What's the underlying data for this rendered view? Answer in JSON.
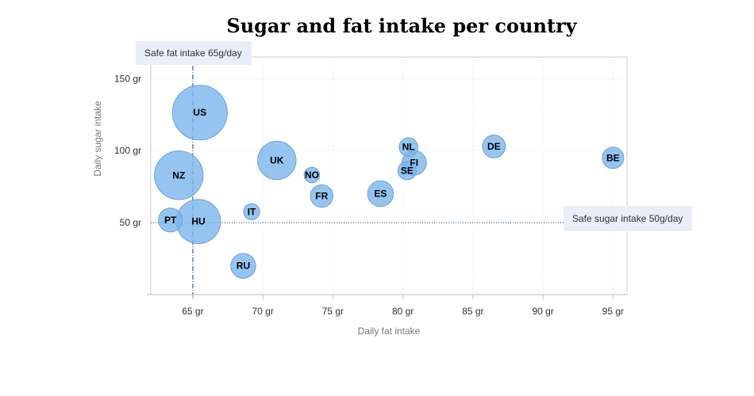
{
  "chart_data": {
    "type": "scatter",
    "title": "Sugar and fat intake per country",
    "xlabel": "Daily fat intake",
    "ylabel": "Daily sugar intake",
    "xlim": [
      62,
      96
    ],
    "ylim": [
      0,
      165
    ],
    "x_ticks": [
      {
        "value": 65,
        "label": "65 gr"
      },
      {
        "value": 70,
        "label": "70 gr"
      },
      {
        "value": 75,
        "label": "75 gr"
      },
      {
        "value": 80,
        "label": "80 gr"
      },
      {
        "value": 85,
        "label": "85 gr"
      },
      {
        "value": 90,
        "label": "90 gr"
      },
      {
        "value": 95,
        "label": "95 gr"
      }
    ],
    "y_ticks": [
      {
        "value": 50,
        "label": "50 gr"
      },
      {
        "value": 100,
        "label": "100 gr"
      },
      {
        "value": 150,
        "label": "150 gr"
      }
    ],
    "grid": true,
    "points": [
      {
        "label": "BE",
        "x": 95,
        "y": 95,
        "z": 13.8
      },
      {
        "label": "DE",
        "x": 86.5,
        "y": 102.9,
        "z": 14.7
      },
      {
        "label": "FI",
        "x": 80.8,
        "y": 91.5,
        "z": 15.8
      },
      {
        "label": "NL",
        "x": 80.4,
        "y": 102.5,
        "z": 12
      },
      {
        "label": "SE",
        "x": 80.3,
        "y": 86.1,
        "z": 11.8
      },
      {
        "label": "ES",
        "x": 78.4,
        "y": 70.1,
        "z": 16.6
      },
      {
        "label": "FR",
        "x": 74.2,
        "y": 68.5,
        "z": 14.5
      },
      {
        "label": "NO",
        "x": 73.5,
        "y": 83.1,
        "z": 10
      },
      {
        "label": "UK",
        "x": 71,
        "y": 93.2,
        "z": 24.7
      },
      {
        "label": "IT",
        "x": 69.2,
        "y": 57.6,
        "z": 10.4
      },
      {
        "label": "RU",
        "x": 68.6,
        "y": 20,
        "z": 16
      },
      {
        "label": "US",
        "x": 65.5,
        "y": 126.4,
        "z": 35.3
      },
      {
        "label": "HU",
        "x": 65.4,
        "y": 50.8,
        "z": 28.5
      },
      {
        "label": "PT",
        "x": 63.4,
        "y": 51.8,
        "z": 15.4
      },
      {
        "label": "NZ",
        "x": 64,
        "y": 82.9,
        "z": 31.3
      }
    ],
    "reference_lines": [
      {
        "axis": "x",
        "value": 65,
        "label": "Safe fat intake 65g/day"
      },
      {
        "axis": "y",
        "value": 50,
        "label": "Safe sugar intake 50g/day"
      }
    ],
    "colors": {
      "bubble_fill": "#7cb5ec",
      "bubble_stroke": "#6aa3d9",
      "reference_line": "#3a6fc4",
      "label_box": "#e9eef8",
      "grid": "#dddddd",
      "axis": "#cccccc"
    }
  }
}
